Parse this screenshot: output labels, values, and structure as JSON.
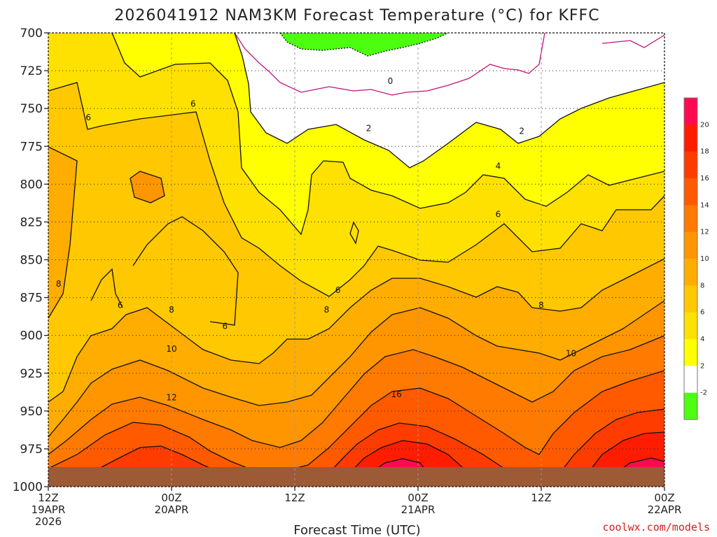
{
  "chart_data": {
    "type": "contour",
    "title": "2026041912 NAM3KM Forecast Temperature (°C) for KFFC",
    "xlabel": "Forecast Time (UTC)",
    "credit": "coolwx.com/models",
    "y_axis": {
      "label_values": [
        "700",
        "725",
        "750",
        "775",
        "800",
        "825",
        "850",
        "875",
        "900",
        "925",
        "950",
        "975",
        "1000"
      ],
      "range": [
        700,
        1000
      ],
      "direction": "pressure-increasing-downward"
    },
    "x_axis": {
      "range_hours": [
        0,
        60
      ],
      "ticks": [
        {
          "hour": 0,
          "line1": "12Z",
          "line2": "19APR",
          "line3": "2026"
        },
        {
          "hour": 12,
          "line1": "00Z",
          "line2": "20APR",
          "line3": ""
        },
        {
          "hour": 24,
          "line1": "12Z",
          "line2": "",
          "line3": ""
        },
        {
          "hour": 36,
          "line1": "00Z",
          "line2": "21APR",
          "line3": ""
        },
        {
          "hour": 48,
          "line1": "12Z",
          "line2": "",
          "line3": ""
        },
        {
          "hour": 60,
          "line1": "00Z",
          "line2": "22APR",
          "line3": ""
        }
      ]
    },
    "colorbar": {
      "tick_labels": [
        "20",
        "18",
        "16",
        "14",
        "12",
        "10",
        "8",
        "6",
        "4",
        "2",
        "-2"
      ],
      "colors": [
        "#ff0a50",
        "#ff1c00",
        "#ff3c00",
        "#ff5a00",
        "#ff7a00",
        "#ff9600",
        "#ffad00",
        "#ffc800",
        "#ffe100",
        "#ffff00",
        "#ffffff",
        "#4cff10"
      ]
    },
    "contour_labels": [
      {
        "hour": 33.3,
        "hpa": 732,
        "text": "0"
      },
      {
        "hour": 31.2,
        "hpa": 763,
        "text": "2"
      },
      {
        "hour": 46.1,
        "hpa": 765,
        "text": "2"
      },
      {
        "hour": 43.8,
        "hpa": 788,
        "text": "4"
      },
      {
        "hour": 3.9,
        "hpa": 756,
        "text": "6"
      },
      {
        "hour": 14.1,
        "hpa": 747,
        "text": "6"
      },
      {
        "hour": 43.8,
        "hpa": 820,
        "text": "6"
      },
      {
        "hour": 7.0,
        "hpa": 880,
        "text": "6"
      },
      {
        "hour": 17.2,
        "hpa": 894,
        "text": "6"
      },
      {
        "hour": 28.2,
        "hpa": 870,
        "text": "6"
      },
      {
        "hour": 1.0,
        "hpa": 866,
        "text": "8"
      },
      {
        "hour": 12.0,
        "hpa": 883,
        "text": "8"
      },
      {
        "hour": 27.1,
        "hpa": 883,
        "text": "8"
      },
      {
        "hour": 48.0,
        "hpa": 880,
        "text": "8"
      },
      {
        "hour": 12.0,
        "hpa": 909,
        "text": "10"
      },
      {
        "hour": 50.9,
        "hpa": 912,
        "text": "10"
      },
      {
        "hour": 12.0,
        "hpa": 941,
        "text": "12"
      },
      {
        "hour": 33.9,
        "hpa": 939,
        "text": "16"
      }
    ]
  }
}
